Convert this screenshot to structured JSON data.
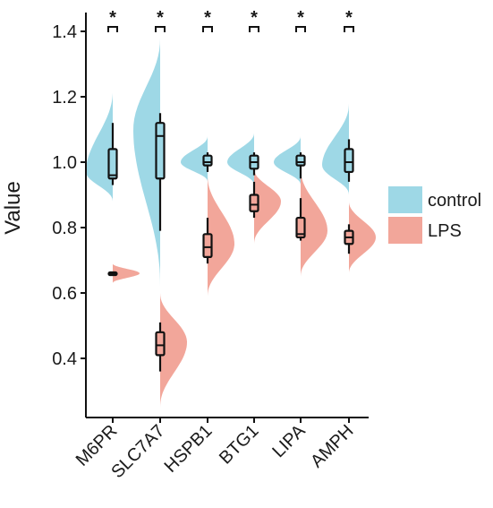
{
  "chart_data": {
    "type": "split-violin-boxplot",
    "ylabel": "Value",
    "xlabel": "",
    "ylim": [
      0.2,
      1.5
    ],
    "yticks": [
      0.4,
      0.6,
      0.8,
      1.0,
      1.2,
      1.4
    ],
    "ytick_labels": [
      "0.4",
      "0.6",
      "0.8",
      "1.0",
      "1.2",
      "1.4"
    ],
    "grid": false,
    "legend_position": "right",
    "categories": [
      "M6PR",
      "SLC7A7",
      "HSPB1",
      "BTG1",
      "LIPA",
      "AMPH"
    ],
    "significance": [
      "*",
      "*",
      "*",
      "*",
      "*",
      "*"
    ],
    "colors": {
      "control": "#9ED8E6",
      "LPS": "#F2A69A",
      "box": "#111111",
      "axis": "#111111"
    },
    "series": [
      {
        "name": "control",
        "side": "left",
        "color": "#9ED8E6",
        "groups": [
          {
            "category": "M6PR",
            "violin": [
              0.88,
              1.22
            ],
            "peak": 0.97,
            "box": {
              "min": 0.93,
              "q1": 0.95,
              "median": 0.96,
              "q3": 1.04,
              "max": 1.12
            }
          },
          {
            "category": "SLC7A7",
            "violin": [
              0.62,
              1.38
            ],
            "peak": 1.1,
            "box": {
              "min": 0.79,
              "q1": 0.95,
              "median": 1.08,
              "q3": 1.12,
              "max": 1.15
            }
          },
          {
            "category": "HSPB1",
            "violin": [
              0.94,
              1.08
            ],
            "peak": 1.0,
            "box": {
              "min": 0.97,
              "q1": 0.99,
              "median": 1.0,
              "q3": 1.02,
              "max": 1.03
            }
          },
          {
            "category": "BTG1",
            "violin": [
              0.93,
              1.09
            ],
            "peak": 1.0,
            "box": {
              "min": 0.96,
              "q1": 0.98,
              "median": 1.0,
              "q3": 1.02,
              "max": 1.03
            }
          },
          {
            "category": "LIPA",
            "violin": [
              0.93,
              1.08
            ],
            "peak": 1.0,
            "box": {
              "min": 0.95,
              "q1": 0.99,
              "median": 1.0,
              "q3": 1.02,
              "max": 1.03
            }
          },
          {
            "category": "AMPH",
            "violin": [
              0.9,
              1.18
            ],
            "peak": 0.99,
            "box": {
              "min": 0.94,
              "q1": 0.97,
              "median": 1.0,
              "q3": 1.04,
              "max": 1.07
            }
          }
        ]
      },
      {
        "name": "LPS",
        "side": "right",
        "color": "#F2A69A",
        "groups": [
          {
            "category": "M6PR",
            "violin": [
              0.63,
              0.69
            ],
            "peak": 0.66,
            "box": {
              "min": 0.655,
              "q1": 0.657,
              "median": 0.66,
              "q3": 0.663,
              "max": 0.665
            }
          },
          {
            "category": "SLC7A7",
            "violin": [
              0.25,
              0.6
            ],
            "peak": 0.45,
            "box": {
              "min": 0.36,
              "q1": 0.41,
              "median": 0.44,
              "q3": 0.48,
              "max": 0.51
            }
          },
          {
            "category": "HSPB1",
            "violin": [
              0.59,
              0.96
            ],
            "peak": 0.75,
            "box": {
              "min": 0.69,
              "q1": 0.71,
              "median": 0.74,
              "q3": 0.78,
              "max": 0.83
            }
          },
          {
            "category": "BTG1",
            "violin": [
              0.75,
              0.98
            ],
            "peak": 0.88,
            "box": {
              "min": 0.83,
              "q1": 0.85,
              "median": 0.87,
              "q3": 0.9,
              "max": 0.94
            }
          },
          {
            "category": "LIPA",
            "violin": [
              0.65,
              0.98
            ],
            "peak": 0.79,
            "box": {
              "min": 0.76,
              "q1": 0.77,
              "median": 0.78,
              "q3": 0.83,
              "max": 0.89
            }
          },
          {
            "category": "AMPH",
            "violin": [
              0.66,
              0.88
            ],
            "peak": 0.77,
            "box": {
              "min": 0.72,
              "q1": 0.75,
              "median": 0.77,
              "q3": 0.79,
              "max": 0.81
            }
          }
        ]
      }
    ]
  }
}
